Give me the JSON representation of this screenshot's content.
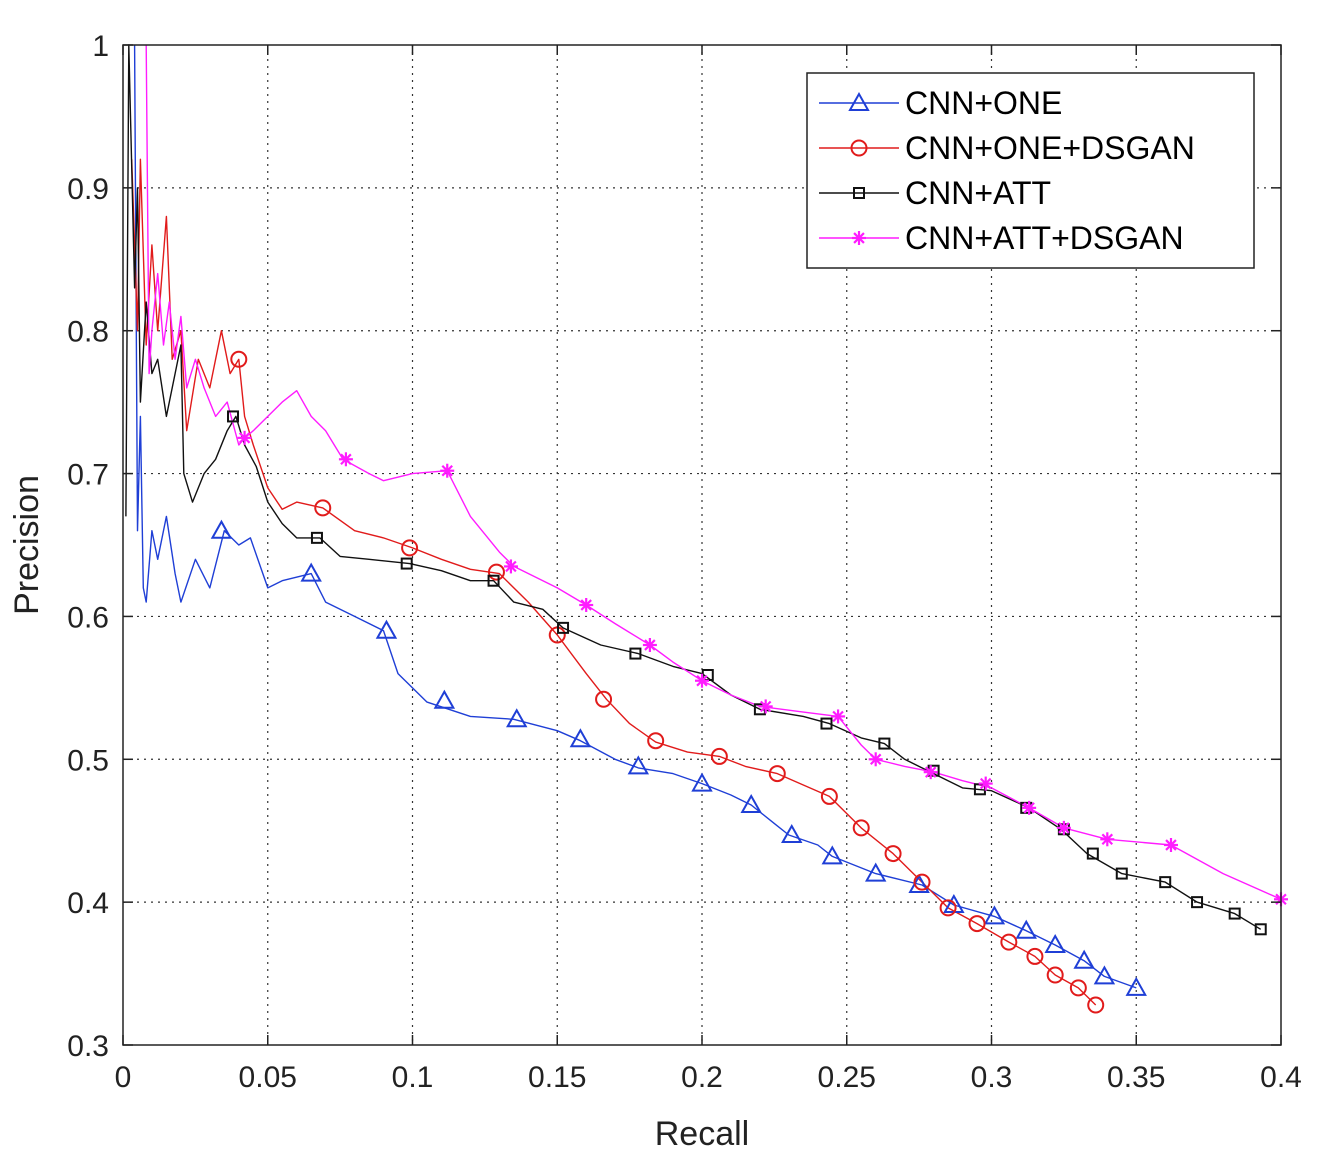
{
  "chart_data": {
    "type": "line",
    "title": "",
    "xlabel": "Recall",
    "ylabel": "Precision",
    "xlim": [
      0,
      0.4
    ],
    "ylim": [
      0.3,
      1
    ],
    "xticks": [
      "0",
      "0.05",
      "0.1",
      "0.15",
      "0.2",
      "0.25",
      "0.3",
      "0.35",
      "0.4"
    ],
    "yticks": [
      "0.3",
      "0.4",
      "0.5",
      "0.6",
      "0.7",
      "0.8",
      "0.9",
      "1"
    ],
    "grid": true,
    "legend_position": "top-right",
    "series": [
      {
        "name": "CNN+ONE",
        "color": "#1f3fd6",
        "marker": "triangle",
        "points": [
          [
            0.004,
            1.0
          ],
          [
            0.005,
            0.66
          ],
          [
            0.006,
            0.74
          ],
          [
            0.007,
            0.62
          ],
          [
            0.008,
            0.61
          ],
          [
            0.01,
            0.66
          ],
          [
            0.012,
            0.64
          ],
          [
            0.015,
            0.67
          ],
          [
            0.018,
            0.63
          ],
          [
            0.02,
            0.61
          ],
          [
            0.025,
            0.64
          ],
          [
            0.03,
            0.62
          ],
          [
            0.035,
            0.66
          ],
          [
            0.04,
            0.65
          ],
          [
            0.044,
            0.655
          ],
          [
            0.05,
            0.62
          ],
          [
            0.055,
            0.625
          ],
          [
            0.065,
            0.63
          ],
          [
            0.07,
            0.61
          ],
          [
            0.08,
            0.6
          ],
          [
            0.09,
            0.59
          ],
          [
            0.095,
            0.56
          ],
          [
            0.105,
            0.54
          ],
          [
            0.12,
            0.53
          ],
          [
            0.135,
            0.528
          ],
          [
            0.15,
            0.52
          ],
          [
            0.158,
            0.513
          ],
          [
            0.17,
            0.5
          ],
          [
            0.178,
            0.494
          ],
          [
            0.19,
            0.49
          ],
          [
            0.2,
            0.483
          ],
          [
            0.21,
            0.475
          ],
          [
            0.217,
            0.468
          ],
          [
            0.225,
            0.455
          ],
          [
            0.23,
            0.447
          ],
          [
            0.24,
            0.44
          ],
          [
            0.245,
            0.432
          ],
          [
            0.26,
            0.42
          ],
          [
            0.276,
            0.412
          ],
          [
            0.287,
            0.398
          ],
          [
            0.301,
            0.39
          ],
          [
            0.312,
            0.38
          ],
          [
            0.322,
            0.37
          ],
          [
            0.332,
            0.359
          ],
          [
            0.339,
            0.348
          ],
          [
            0.35,
            0.34
          ]
        ],
        "marker_points": [
          [
            0.034,
            0.66
          ],
          [
            0.065,
            0.63
          ],
          [
            0.091,
            0.59
          ],
          [
            0.111,
            0.541
          ],
          [
            0.136,
            0.528
          ],
          [
            0.158,
            0.514
          ],
          [
            0.178,
            0.495
          ],
          [
            0.2,
            0.483
          ],
          [
            0.217,
            0.468
          ],
          [
            0.231,
            0.447
          ],
          [
            0.245,
            0.432
          ],
          [
            0.26,
            0.42
          ],
          [
            0.275,
            0.412
          ],
          [
            0.287,
            0.398
          ],
          [
            0.301,
            0.39
          ],
          [
            0.312,
            0.38
          ],
          [
            0.322,
            0.37
          ],
          [
            0.332,
            0.359
          ],
          [
            0.339,
            0.348
          ],
          [
            0.35,
            0.34
          ]
        ]
      },
      {
        "name": "CNN+ONE+DSGAN",
        "color": "#e11b1b",
        "marker": "circle",
        "points": [
          [
            0.003,
            0.92
          ],
          [
            0.005,
            0.8
          ],
          [
            0.006,
            0.92
          ],
          [
            0.008,
            0.79
          ],
          [
            0.01,
            0.86
          ],
          [
            0.012,
            0.8
          ],
          [
            0.015,
            0.88
          ],
          [
            0.017,
            0.78
          ],
          [
            0.02,
            0.8
          ],
          [
            0.022,
            0.73
          ],
          [
            0.026,
            0.78
          ],
          [
            0.03,
            0.76
          ],
          [
            0.034,
            0.8
          ],
          [
            0.037,
            0.77
          ],
          [
            0.04,
            0.78
          ],
          [
            0.042,
            0.74
          ],
          [
            0.045,
            0.72
          ],
          [
            0.05,
            0.69
          ],
          [
            0.055,
            0.675
          ],
          [
            0.06,
            0.68
          ],
          [
            0.069,
            0.676
          ],
          [
            0.08,
            0.66
          ],
          [
            0.09,
            0.655
          ],
          [
            0.1,
            0.648
          ],
          [
            0.11,
            0.64
          ],
          [
            0.12,
            0.633
          ],
          [
            0.13,
            0.63
          ],
          [
            0.14,
            0.61
          ],
          [
            0.15,
            0.587
          ],
          [
            0.16,
            0.56
          ],
          [
            0.167,
            0.542
          ],
          [
            0.175,
            0.525
          ],
          [
            0.184,
            0.512
          ],
          [
            0.195,
            0.505
          ],
          [
            0.206,
            0.502
          ],
          [
            0.215,
            0.495
          ],
          [
            0.226,
            0.49
          ],
          [
            0.235,
            0.482
          ],
          [
            0.244,
            0.474
          ],
          [
            0.255,
            0.452
          ],
          [
            0.266,
            0.434
          ],
          [
            0.276,
            0.414
          ],
          [
            0.285,
            0.396
          ],
          [
            0.295,
            0.385
          ],
          [
            0.306,
            0.372
          ],
          [
            0.315,
            0.362
          ],
          [
            0.322,
            0.349
          ],
          [
            0.33,
            0.34
          ],
          [
            0.336,
            0.328
          ]
        ],
        "marker_points": [
          [
            0.04,
            0.78
          ],
          [
            0.069,
            0.676
          ],
          [
            0.099,
            0.648
          ],
          [
            0.129,
            0.631
          ],
          [
            0.15,
            0.587
          ],
          [
            0.166,
            0.542
          ],
          [
            0.184,
            0.513
          ],
          [
            0.206,
            0.502
          ],
          [
            0.226,
            0.49
          ],
          [
            0.244,
            0.474
          ],
          [
            0.255,
            0.452
          ],
          [
            0.266,
            0.434
          ],
          [
            0.276,
            0.414
          ],
          [
            0.285,
            0.396
          ],
          [
            0.295,
            0.385
          ],
          [
            0.306,
            0.372
          ],
          [
            0.315,
            0.362
          ],
          [
            0.322,
            0.349
          ],
          [
            0.33,
            0.34
          ],
          [
            0.336,
            0.328
          ]
        ]
      },
      {
        "name": "CNN+ATT",
        "color": "#111111",
        "marker": "square",
        "points": [
          [
            0.001,
            0.67
          ],
          [
            0.002,
            1.0
          ],
          [
            0.004,
            0.83
          ],
          [
            0.005,
            0.9
          ],
          [
            0.006,
            0.75
          ],
          [
            0.008,
            0.82
          ],
          [
            0.01,
            0.77
          ],
          [
            0.012,
            0.78
          ],
          [
            0.015,
            0.74
          ],
          [
            0.018,
            0.77
          ],
          [
            0.02,
            0.79
          ],
          [
            0.021,
            0.7
          ],
          [
            0.024,
            0.68
          ],
          [
            0.028,
            0.7
          ],
          [
            0.032,
            0.71
          ],
          [
            0.036,
            0.73
          ],
          [
            0.039,
            0.74
          ],
          [
            0.042,
            0.72
          ],
          [
            0.046,
            0.705
          ],
          [
            0.05,
            0.68
          ],
          [
            0.055,
            0.665
          ],
          [
            0.06,
            0.655
          ],
          [
            0.068,
            0.655
          ],
          [
            0.075,
            0.642
          ],
          [
            0.085,
            0.64
          ],
          [
            0.099,
            0.637
          ],
          [
            0.11,
            0.632
          ],
          [
            0.12,
            0.625
          ],
          [
            0.128,
            0.625
          ],
          [
            0.135,
            0.61
          ],
          [
            0.145,
            0.605
          ],
          [
            0.152,
            0.592
          ],
          [
            0.165,
            0.58
          ],
          [
            0.178,
            0.574
          ],
          [
            0.19,
            0.565
          ],
          [
            0.2,
            0.56
          ],
          [
            0.21,
            0.545
          ],
          [
            0.22,
            0.535
          ],
          [
            0.235,
            0.53
          ],
          [
            0.244,
            0.525
          ],
          [
            0.255,
            0.515
          ],
          [
            0.263,
            0.511
          ],
          [
            0.27,
            0.5
          ],
          [
            0.28,
            0.49
          ],
          [
            0.29,
            0.48
          ],
          [
            0.3,
            0.478
          ],
          [
            0.313,
            0.466
          ],
          [
            0.324,
            0.451
          ],
          [
            0.333,
            0.434
          ],
          [
            0.345,
            0.42
          ],
          [
            0.36,
            0.414
          ],
          [
            0.371,
            0.4
          ],
          [
            0.384,
            0.392
          ],
          [
            0.393,
            0.381
          ]
        ],
        "marker_points": [
          [
            0.038,
            0.74
          ],
          [
            0.067,
            0.655
          ],
          [
            0.098,
            0.637
          ],
          [
            0.128,
            0.625
          ],
          [
            0.152,
            0.592
          ],
          [
            0.177,
            0.574
          ],
          [
            0.202,
            0.559
          ],
          [
            0.22,
            0.535
          ],
          [
            0.243,
            0.525
          ],
          [
            0.263,
            0.511
          ],
          [
            0.28,
            0.492
          ],
          [
            0.296,
            0.479
          ],
          [
            0.312,
            0.466
          ],
          [
            0.325,
            0.451
          ],
          [
            0.335,
            0.434
          ],
          [
            0.345,
            0.42
          ],
          [
            0.36,
            0.414
          ],
          [
            0.371,
            0.4
          ],
          [
            0.384,
            0.392
          ],
          [
            0.393,
            0.381
          ]
        ]
      },
      {
        "name": "CNN+ATT+DSGAN",
        "color": "#ff1cff",
        "marker": "star",
        "points": [
          [
            0.008,
            1.0
          ],
          [
            0.009,
            0.77
          ],
          [
            0.01,
            0.8
          ],
          [
            0.012,
            0.84
          ],
          [
            0.014,
            0.79
          ],
          [
            0.016,
            0.82
          ],
          [
            0.018,
            0.78
          ],
          [
            0.02,
            0.81
          ],
          [
            0.022,
            0.76
          ],
          [
            0.025,
            0.78
          ],
          [
            0.028,
            0.76
          ],
          [
            0.032,
            0.74
          ],
          [
            0.036,
            0.75
          ],
          [
            0.04,
            0.72
          ],
          [
            0.042,
            0.725
          ],
          [
            0.045,
            0.73
          ],
          [
            0.05,
            0.74
          ],
          [
            0.055,
            0.75
          ],
          [
            0.06,
            0.758
          ],
          [
            0.065,
            0.74
          ],
          [
            0.07,
            0.73
          ],
          [
            0.076,
            0.71
          ],
          [
            0.085,
            0.7
          ],
          [
            0.09,
            0.695
          ],
          [
            0.1,
            0.7
          ],
          [
            0.112,
            0.702
          ],
          [
            0.12,
            0.67
          ],
          [
            0.13,
            0.645
          ],
          [
            0.135,
            0.635
          ],
          [
            0.15,
            0.62
          ],
          [
            0.16,
            0.608
          ],
          [
            0.17,
            0.595
          ],
          [
            0.182,
            0.58
          ],
          [
            0.19,
            0.568
          ],
          [
            0.2,
            0.555
          ],
          [
            0.21,
            0.545
          ],
          [
            0.22,
            0.537
          ],
          [
            0.235,
            0.533
          ],
          [
            0.247,
            0.53
          ],
          [
            0.255,
            0.51
          ],
          [
            0.26,
            0.5
          ],
          [
            0.27,
            0.495
          ],
          [
            0.28,
            0.491
          ],
          [
            0.29,
            0.485
          ],
          [
            0.3,
            0.48
          ],
          [
            0.313,
            0.466
          ],
          [
            0.325,
            0.452
          ],
          [
            0.34,
            0.444
          ],
          [
            0.362,
            0.44
          ],
          [
            0.38,
            0.42
          ],
          [
            0.4,
            0.402
          ]
        ],
        "marker_points": [
          [
            0.042,
            0.725
          ],
          [
            0.077,
            0.71
          ],
          [
            0.112,
            0.702
          ],
          [
            0.134,
            0.635
          ],
          [
            0.16,
            0.608
          ],
          [
            0.182,
            0.58
          ],
          [
            0.2,
            0.555
          ],
          [
            0.222,
            0.537
          ],
          [
            0.247,
            0.53
          ],
          [
            0.26,
            0.5
          ],
          [
            0.279,
            0.491
          ],
          [
            0.298,
            0.483
          ],
          [
            0.313,
            0.466
          ],
          [
            0.325,
            0.452
          ],
          [
            0.34,
            0.444
          ],
          [
            0.362,
            0.44
          ],
          [
            0.4,
            0.402
          ]
        ]
      }
    ]
  }
}
